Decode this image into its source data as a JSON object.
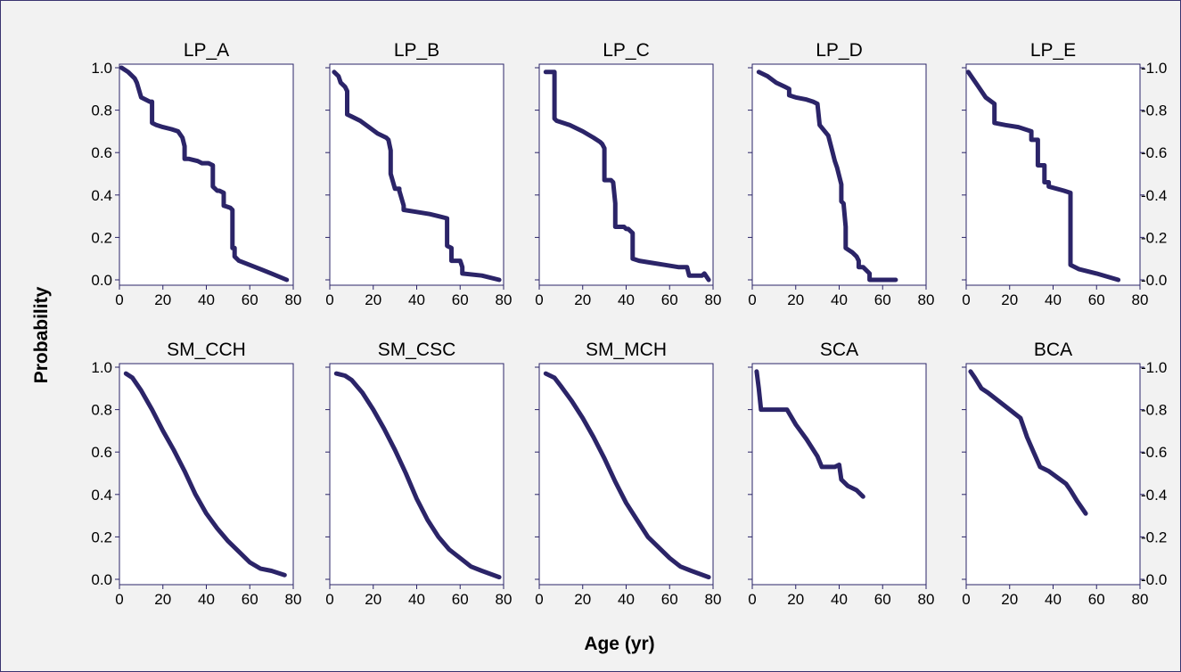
{
  "figure": {
    "xlabel": "Age (yr)",
    "ylabel": "Probability"
  },
  "chart_data": [
    {
      "type": "line",
      "title": "LP_A",
      "xlim": [
        0,
        80
      ],
      "ylim": [
        0,
        1
      ],
      "xticks": [
        0,
        20,
        40,
        60,
        80
      ],
      "yticks": [
        0.0,
        0.2,
        0.4,
        0.6,
        0.8,
        1.0
      ],
      "x": [
        1,
        4,
        7,
        8,
        10,
        14,
        15,
        15,
        17,
        20,
        24,
        27,
        29,
        30,
        30,
        32,
        36,
        38,
        41,
        43,
        43,
        45,
        46,
        48,
        48,
        51,
        52,
        52,
        53,
        53,
        55,
        60,
        65,
        70,
        77
      ],
      "y": [
        1.0,
        0.98,
        0.95,
        0.93,
        0.86,
        0.84,
        0.84,
        0.74,
        0.73,
        0.72,
        0.71,
        0.7,
        0.67,
        0.63,
        0.57,
        0.57,
        0.56,
        0.55,
        0.55,
        0.54,
        0.44,
        0.42,
        0.42,
        0.41,
        0.35,
        0.34,
        0.33,
        0.15,
        0.15,
        0.11,
        0.09,
        0.07,
        0.05,
        0.03,
        0.0
      ]
    },
    {
      "type": "line",
      "title": "LP_B",
      "xlim": [
        0,
        80
      ],
      "ylim": [
        0,
        1
      ],
      "xticks": [
        0,
        20,
        40,
        60,
        80
      ],
      "yticks": [
        0.0,
        0.2,
        0.4,
        0.6,
        0.8,
        1.0
      ],
      "x": [
        2,
        4,
        5,
        7,
        8,
        8,
        10,
        14,
        18,
        22,
        26,
        27,
        28,
        28,
        30,
        32,
        32,
        34,
        34,
        40,
        46,
        50,
        54,
        54,
        56,
        56,
        60,
        61,
        61,
        70,
        78
      ],
      "y": [
        0.98,
        0.96,
        0.93,
        0.91,
        0.89,
        0.78,
        0.77,
        0.75,
        0.72,
        0.69,
        0.67,
        0.66,
        0.61,
        0.5,
        0.43,
        0.43,
        0.42,
        0.35,
        0.33,
        0.32,
        0.31,
        0.3,
        0.29,
        0.16,
        0.15,
        0.09,
        0.09,
        0.06,
        0.03,
        0.02,
        0.0
      ]
    },
    {
      "type": "line",
      "title": "LP_C",
      "xlim": [
        0,
        80
      ],
      "ylim": [
        0,
        1
      ],
      "xticks": [
        0,
        20,
        40,
        60,
        80
      ],
      "yticks": [
        0.0,
        0.2,
        0.4,
        0.6,
        0.8,
        1.0
      ],
      "x": [
        3,
        7,
        7,
        8,
        14,
        20,
        25,
        28,
        29,
        30,
        30,
        33,
        34,
        35,
        35,
        39,
        40,
        41,
        43,
        43,
        46,
        52,
        58,
        64,
        68,
        69,
        75,
        76,
        78
      ],
      "y": [
        0.98,
        0.98,
        0.76,
        0.75,
        0.73,
        0.7,
        0.67,
        0.65,
        0.64,
        0.62,
        0.47,
        0.47,
        0.46,
        0.36,
        0.25,
        0.25,
        0.24,
        0.24,
        0.22,
        0.1,
        0.09,
        0.08,
        0.07,
        0.06,
        0.06,
        0.02,
        0.02,
        0.03,
        0.0
      ]
    },
    {
      "type": "line",
      "title": "LP_D",
      "xlim": [
        0,
        80
      ],
      "ylim": [
        0,
        1
      ],
      "xticks": [
        0,
        20,
        40,
        60,
        80
      ],
      "yticks": [
        0.0,
        0.2,
        0.4,
        0.6,
        0.8,
        1.0
      ],
      "x": [
        3,
        7,
        11,
        15,
        17,
        17,
        20,
        25,
        28,
        30,
        31,
        35,
        37,
        38,
        39,
        40,
        41,
        41,
        42,
        43,
        43,
        46,
        48,
        49,
        49,
        51,
        54,
        54,
        58,
        66
      ],
      "y": [
        0.98,
        0.96,
        0.93,
        0.91,
        0.9,
        0.87,
        0.86,
        0.85,
        0.84,
        0.83,
        0.73,
        0.68,
        0.6,
        0.56,
        0.53,
        0.49,
        0.45,
        0.37,
        0.36,
        0.25,
        0.15,
        0.13,
        0.11,
        0.09,
        0.06,
        0.06,
        0.03,
        0.0,
        0.0,
        0.0
      ]
    },
    {
      "type": "line",
      "title": "LP_E",
      "xlim": [
        0,
        80
      ],
      "ylim": [
        0,
        1
      ],
      "xticks": [
        0,
        20,
        40,
        60,
        80
      ],
      "yticks": [
        0.0,
        0.2,
        0.4,
        0.6,
        0.8,
        1.0
      ],
      "x": [
        1,
        5,
        9,
        13,
        13,
        18,
        24,
        30,
        30,
        33,
        33,
        36,
        36,
        38,
        38,
        45,
        48,
        48,
        52,
        60,
        70
      ],
      "y": [
        0.98,
        0.92,
        0.86,
        0.83,
        0.74,
        0.73,
        0.72,
        0.7,
        0.66,
        0.66,
        0.54,
        0.54,
        0.46,
        0.46,
        0.44,
        0.42,
        0.41,
        0.07,
        0.05,
        0.03,
        0.0
      ]
    },
    {
      "type": "line",
      "title": "SM_CCH",
      "xlim": [
        0,
        80
      ],
      "ylim": [
        0,
        1
      ],
      "xticks": [
        0,
        20,
        40,
        60,
        80
      ],
      "yticks": [
        0.0,
        0.2,
        0.4,
        0.6,
        0.8,
        1.0
      ],
      "x": [
        3,
        6,
        10,
        15,
        20,
        25,
        30,
        35,
        40,
        45,
        50,
        55,
        60,
        65,
        70,
        76
      ],
      "y": [
        0.97,
        0.95,
        0.89,
        0.8,
        0.7,
        0.61,
        0.51,
        0.4,
        0.31,
        0.24,
        0.18,
        0.13,
        0.08,
        0.05,
        0.04,
        0.02
      ]
    },
    {
      "type": "line",
      "title": "SM_CSC",
      "xlim": [
        0,
        80
      ],
      "ylim": [
        0,
        1
      ],
      "xticks": [
        0,
        20,
        40,
        60,
        80
      ],
      "yticks": [
        0.0,
        0.2,
        0.4,
        0.6,
        0.8,
        1.0
      ],
      "x": [
        3,
        7,
        10,
        15,
        20,
        25,
        30,
        35,
        40,
        45,
        50,
        55,
        60,
        65,
        70,
        78
      ],
      "y": [
        0.97,
        0.96,
        0.94,
        0.88,
        0.8,
        0.71,
        0.61,
        0.5,
        0.38,
        0.28,
        0.2,
        0.14,
        0.1,
        0.06,
        0.04,
        0.01
      ]
    },
    {
      "type": "line",
      "title": "SM_MCH",
      "xlim": [
        0,
        80
      ],
      "ylim": [
        0,
        1
      ],
      "xticks": [
        0,
        20,
        40,
        60,
        80
      ],
      "yticks": [
        0.0,
        0.2,
        0.4,
        0.6,
        0.8,
        1.0
      ],
      "x": [
        3,
        7,
        10,
        15,
        20,
        25,
        30,
        35,
        40,
        45,
        50,
        55,
        60,
        65,
        70,
        78
      ],
      "y": [
        0.97,
        0.95,
        0.91,
        0.84,
        0.76,
        0.67,
        0.57,
        0.46,
        0.36,
        0.28,
        0.2,
        0.15,
        0.1,
        0.06,
        0.04,
        0.01
      ]
    },
    {
      "type": "line",
      "title": "SCA",
      "xlim": [
        0,
        80
      ],
      "ylim": [
        0,
        1
      ],
      "xticks": [
        0,
        20,
        40,
        60,
        80
      ],
      "yticks": [
        0.0,
        0.2,
        0.4,
        0.6,
        0.8,
        1.0
      ],
      "x": [
        2,
        3,
        4,
        9,
        16,
        20,
        25,
        30,
        32,
        36,
        38,
        40,
        41,
        44,
        48,
        51
      ],
      "y": [
        0.98,
        0.9,
        0.8,
        0.8,
        0.8,
        0.73,
        0.66,
        0.58,
        0.53,
        0.53,
        0.53,
        0.54,
        0.47,
        0.44,
        0.42,
        0.39
      ]
    },
    {
      "type": "line",
      "title": "BCA",
      "xlim": [
        0,
        80
      ],
      "ylim": [
        0,
        1
      ],
      "xticks": [
        0,
        20,
        40,
        60,
        80
      ],
      "yticks": [
        0.0,
        0.2,
        0.4,
        0.6,
        0.8,
        1.0
      ],
      "x": [
        2,
        4,
        7,
        10,
        15,
        20,
        25,
        28,
        31,
        34,
        38,
        42,
        46,
        48,
        51,
        55
      ],
      "y": [
        0.98,
        0.95,
        0.9,
        0.88,
        0.84,
        0.8,
        0.76,
        0.67,
        0.6,
        0.53,
        0.51,
        0.48,
        0.45,
        0.42,
        0.37,
        0.31
      ]
    }
  ],
  "colors": {
    "line": "#2b2468",
    "frame": "#2b2468",
    "panel": "#ffffff",
    "background": "#f2f2f2"
  }
}
